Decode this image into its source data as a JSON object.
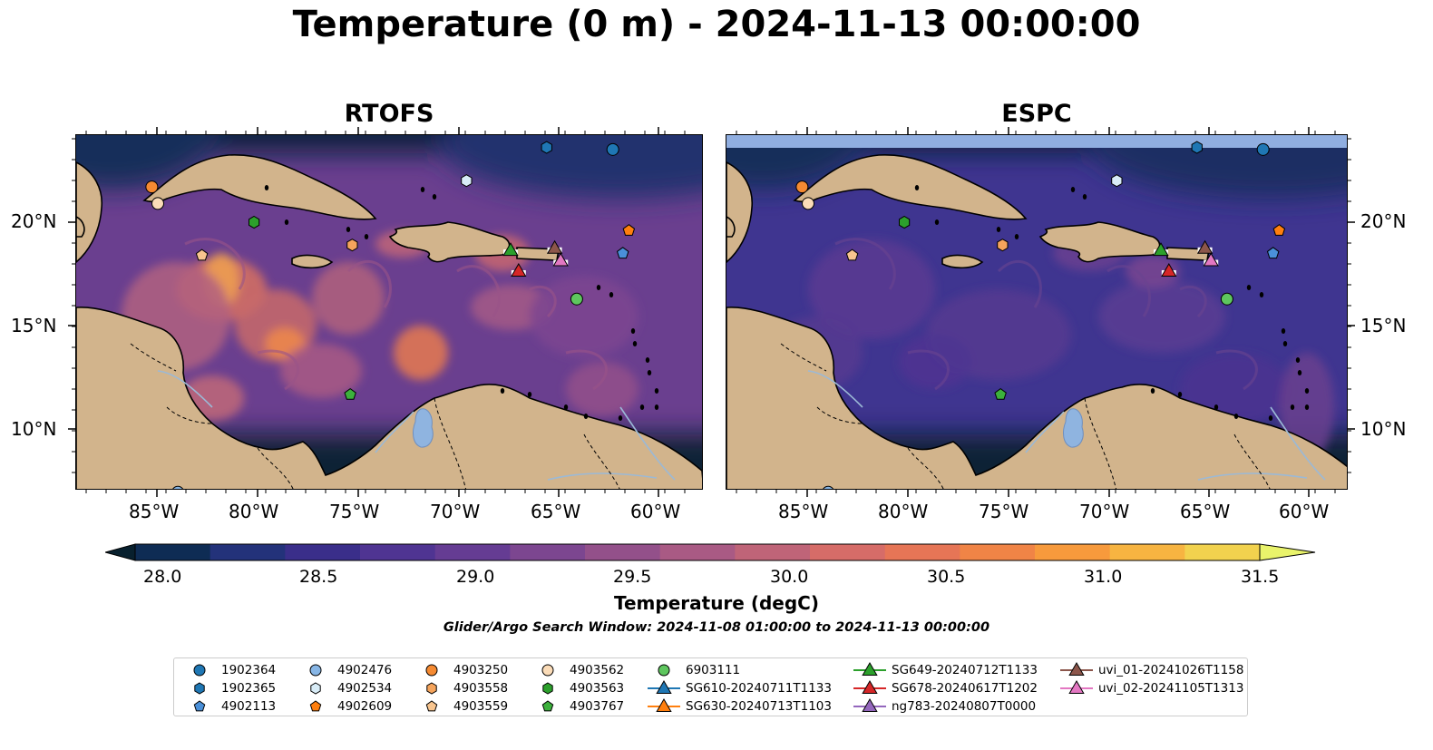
{
  "title": "Temperature (0 m) - 2024-11-13 00:00:00",
  "panels": [
    {
      "title": "RTOFS",
      "theme": "warm"
    },
    {
      "title": "ESPC",
      "theme": "cool"
    }
  ],
  "lon_ticks": [
    "85°W",
    "80°W",
    "75°W",
    "70°W",
    "65°W",
    "60°W"
  ],
  "lat_ticks": [
    "20°N",
    "15°N",
    "10°N"
  ],
  "colorbar": {
    "label": "Temperature (degC)",
    "ticks": [
      "28.0",
      "28.5",
      "29.0",
      "29.5",
      "30.0",
      "30.5",
      "31.0",
      "31.5"
    ],
    "colors": [
      "#0e2c54",
      "#23327a",
      "#3a2e8a",
      "#4f3492",
      "#653c93",
      "#7c4690",
      "#93508a",
      "#a95a84",
      "#bf6478",
      "#d66c68",
      "#e67556",
      "#f08446",
      "#f79a3c",
      "#f7b441",
      "#f2d24e"
    ],
    "under_color": "#08202e",
    "over_color": "#e9f36b"
  },
  "search_window": "Glider/Argo Search Window: 2024-11-08 01:00:00 to 2024-11-13 00:00:00",
  "legend": [
    {
      "label": "1902364",
      "marker": "circle",
      "color": "#1f77b4"
    },
    {
      "label": "1902365",
      "marker": "hexagon",
      "color": "#1f77b4"
    },
    {
      "label": "4902113",
      "marker": "pentagon",
      "color": "#4a90d9"
    },
    {
      "label": "4902476",
      "marker": "circle",
      "color": "#87b6e6"
    },
    {
      "label": "4902534",
      "marker": "hexagon",
      "color": "#d8ecf7"
    },
    {
      "label": "4902609",
      "marker": "pentagon",
      "color": "#ff7f0e"
    },
    {
      "label": "4903250",
      "marker": "circle",
      "color": "#f58a32"
    },
    {
      "label": "4903558",
      "marker": "hexagon",
      "color": "#f5a45c"
    },
    {
      "label": "4903559",
      "marker": "pentagon",
      "color": "#f8c58f"
    },
    {
      "label": "4903562",
      "marker": "circle",
      "color": "#fbdcb8"
    },
    {
      "label": "4903563",
      "marker": "hexagon",
      "color": "#2ca02c"
    },
    {
      "label": "4903767",
      "marker": "pentagon",
      "color": "#3cb03c"
    },
    {
      "label": "6903111",
      "marker": "circle",
      "color": "#5ec65e"
    },
    {
      "label": "SG610-20240711T1133",
      "marker": "triangle",
      "color": "#1f77b4"
    },
    {
      "label": "SG630-20240713T1103",
      "marker": "triangle",
      "color": "#ff7f0e"
    },
    {
      "label": "SG649-20240712T1133",
      "marker": "triangle",
      "color": "#2ca02c"
    },
    {
      "label": "SG678-20240617T1202",
      "marker": "triangle",
      "color": "#d62728"
    },
    {
      "label": "ng783-20240807T0000",
      "marker": "triangle",
      "color": "#9467bd"
    },
    {
      "label": "uvi_01-20241026T1158",
      "marker": "triangle",
      "color": "#8c564b"
    },
    {
      "label": "uvi_02-20241105T1313",
      "marker": "triangle",
      "color": "#e377c2"
    }
  ],
  "map_colors": {
    "land": "#d2b48c",
    "lake": "#8fb4e0",
    "river": "#9bb9d6"
  }
}
